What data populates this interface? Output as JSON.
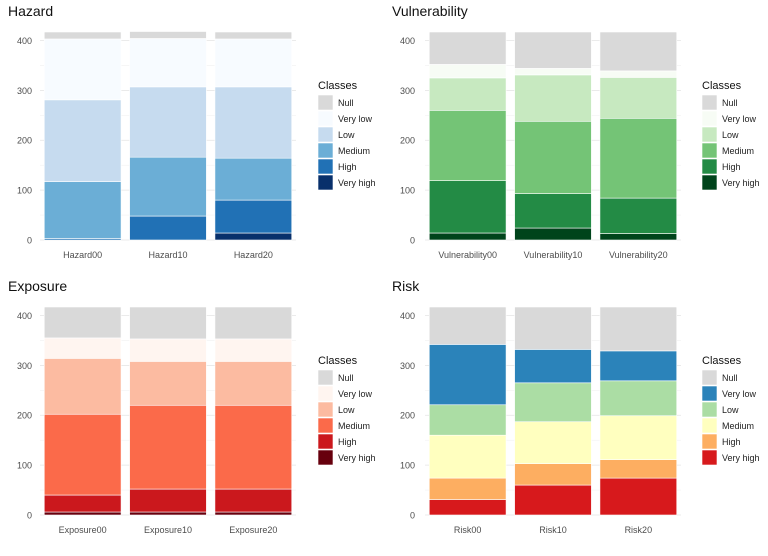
{
  "legend_title": "Classes",
  "charts": [
    {
      "title": "Hazard",
      "type": "stacked-bar",
      "categories": [
        "Hazard00",
        "Hazard10",
        "Hazard20"
      ],
      "classes": [
        "Very high",
        "High",
        "Medium",
        "Low",
        "Very low",
        "Null"
      ],
      "colors": {
        "Null": "#d9d9d9",
        "Very low": "#f7fbff",
        "Low": "#c6dbef",
        "Medium": "#6baed6",
        "High": "#2171b5",
        "Very high": "#08306b"
      },
      "series": [
        {
          "name": "Very high",
          "values": [
            0,
            0,
            14
          ]
        },
        {
          "name": "High",
          "values": [
            3,
            48,
            66
          ]
        },
        {
          "name": "Medium",
          "values": [
            114,
            118,
            84
          ]
        },
        {
          "name": "Low",
          "values": [
            164,
            141,
            143
          ]
        },
        {
          "name": "Very low",
          "values": [
            122,
            97,
            96
          ]
        },
        {
          "name": "Null",
          "values": [
            14,
            14,
            14
          ]
        }
      ],
      "ylim": [
        0,
        417
      ],
      "yticks": [
        0,
        100,
        200,
        300,
        400
      ]
    },
    {
      "title": "Vulnerability",
      "type": "stacked-bar",
      "categories": [
        "Vulnerability00",
        "Vulnerability10",
        "Vulnerability20"
      ],
      "classes": [
        "Very high",
        "High",
        "Medium",
        "Low",
        "Very low",
        "Null"
      ],
      "colors": {
        "Null": "#d9d9d9",
        "Very low": "#f7fcf5",
        "Low": "#c7e9c0",
        "Medium": "#74c476",
        "High": "#238b45",
        "Very high": "#00441b"
      },
      "series": [
        {
          "name": "Very high",
          "values": [
            14,
            24,
            13
          ]
        },
        {
          "name": "High",
          "values": [
            105,
            69,
            71
          ]
        },
        {
          "name": "Medium",
          "values": [
            141,
            145,
            160
          ]
        },
        {
          "name": "Low",
          "values": [
            65,
            93,
            82
          ]
        },
        {
          "name": "Very low",
          "values": [
            27,
            13,
            13
          ]
        },
        {
          "name": "Null",
          "values": [
            65,
            73,
            78
          ]
        }
      ],
      "ylim": [
        0,
        417
      ],
      "yticks": [
        0,
        100,
        200,
        300,
        400
      ]
    },
    {
      "title": "Exposure",
      "type": "stacked-bar",
      "categories": [
        "Exposure00",
        "Exposure10",
        "Exposure20"
      ],
      "classes": [
        "Very high",
        "High",
        "Medium",
        "Low",
        "Very low",
        "Null"
      ],
      "colors": {
        "Null": "#d9d9d9",
        "Very low": "#fff5f0",
        "Low": "#fcbba1",
        "Medium": "#fb6a4a",
        "High": "#cb181d",
        "Very high": "#67000d"
      },
      "series": [
        {
          "name": "Very high",
          "values": [
            6,
            6,
            6
          ]
        },
        {
          "name": "High",
          "values": [
            34,
            46,
            46
          ]
        },
        {
          "name": "Medium",
          "values": [
            162,
            168,
            168
          ]
        },
        {
          "name": "Low",
          "values": [
            112,
            88,
            88
          ]
        },
        {
          "name": "Very low",
          "values": [
            41,
            45,
            45
          ]
        },
        {
          "name": "Null",
          "values": [
            62,
            64,
            64
          ]
        }
      ],
      "ylim": [
        0,
        417
      ],
      "yticks": [
        0,
        100,
        200,
        300,
        400
      ]
    },
    {
      "title": "Risk",
      "type": "stacked-bar",
      "categories": [
        "Risk00",
        "Risk10",
        "Risk20"
      ],
      "classes": [
        "Very high",
        "High",
        "Medium",
        "Low",
        "Very low",
        "Null"
      ],
      "colors": {
        "Null": "#d9d9d9",
        "Very low": "#2b83ba",
        "Low": "#abdda4",
        "Medium": "#ffffbf",
        "High": "#fdae61",
        "Very high": "#d7191c"
      },
      "series": [
        {
          "name": "Very high",
          "values": [
            31,
            60,
            74
          ]
        },
        {
          "name": "High",
          "values": [
            43,
            43,
            37
          ]
        },
        {
          "name": "Medium",
          "values": [
            86,
            84,
            88
          ]
        },
        {
          "name": "Low",
          "values": [
            61,
            78,
            70
          ]
        },
        {
          "name": "Very low",
          "values": [
            121,
            67,
            60
          ]
        },
        {
          "name": "Null",
          "values": [
            75,
            85,
            88
          ]
        }
      ],
      "ylim": [
        0,
        417
      ],
      "yticks": [
        0,
        100,
        200,
        300,
        400
      ]
    }
  ]
}
